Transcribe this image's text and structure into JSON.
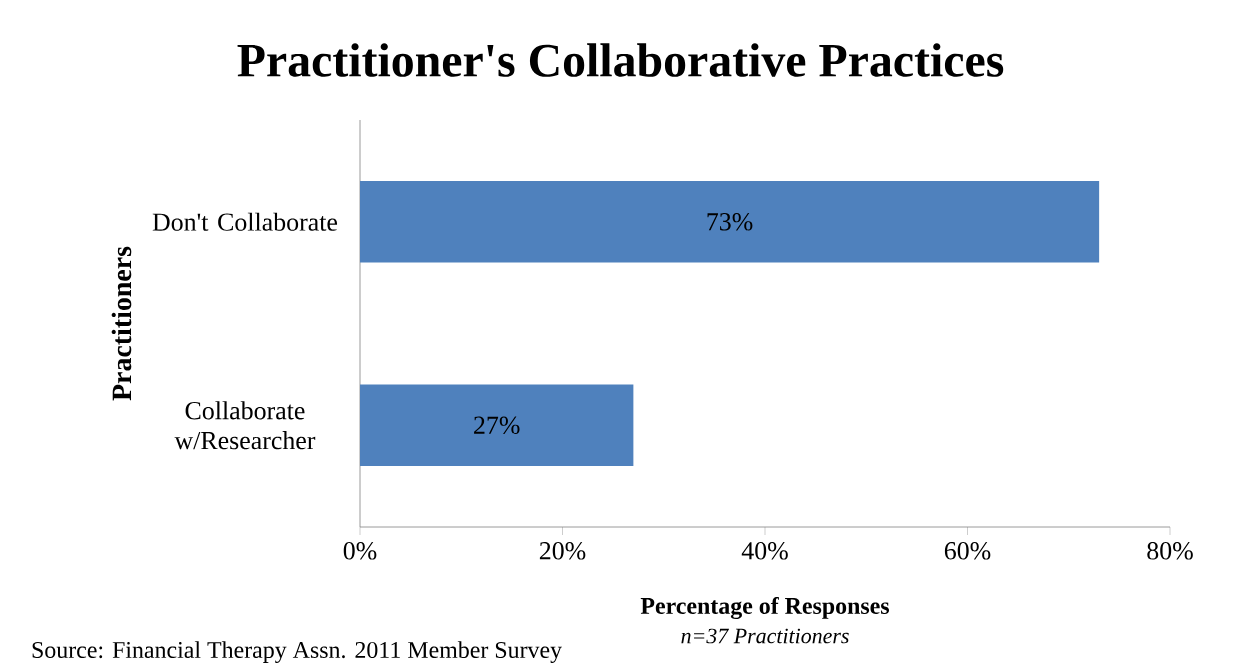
{
  "chart_data": {
    "type": "bar",
    "orientation": "horizontal",
    "title": "Practitioner's Collaborative Practices",
    "categories": [
      "Don't Collaborate",
      "Collaborate w/Researcher"
    ],
    "values": [
      73,
      27
    ],
    "value_labels": [
      "73%",
      "27%"
    ],
    "color": "#4f81bd",
    "xlim": [
      0,
      80
    ],
    "xticks": [
      {
        "value": 0,
        "label": "0%"
      },
      {
        "value": 20,
        "label": "20%"
      },
      {
        "value": 40,
        "label": "40%"
      },
      {
        "value": 60,
        "label": "60%"
      },
      {
        "value": 80,
        "label": "80%"
      }
    ],
    "xlabel": "Percentage of Responses",
    "ylabel": "Practitioners",
    "annotations": [
      "n=37 Practitioners",
      "Source: Financial Therapy Assn. 2011 Member Survey"
    ],
    "grid": false
  }
}
